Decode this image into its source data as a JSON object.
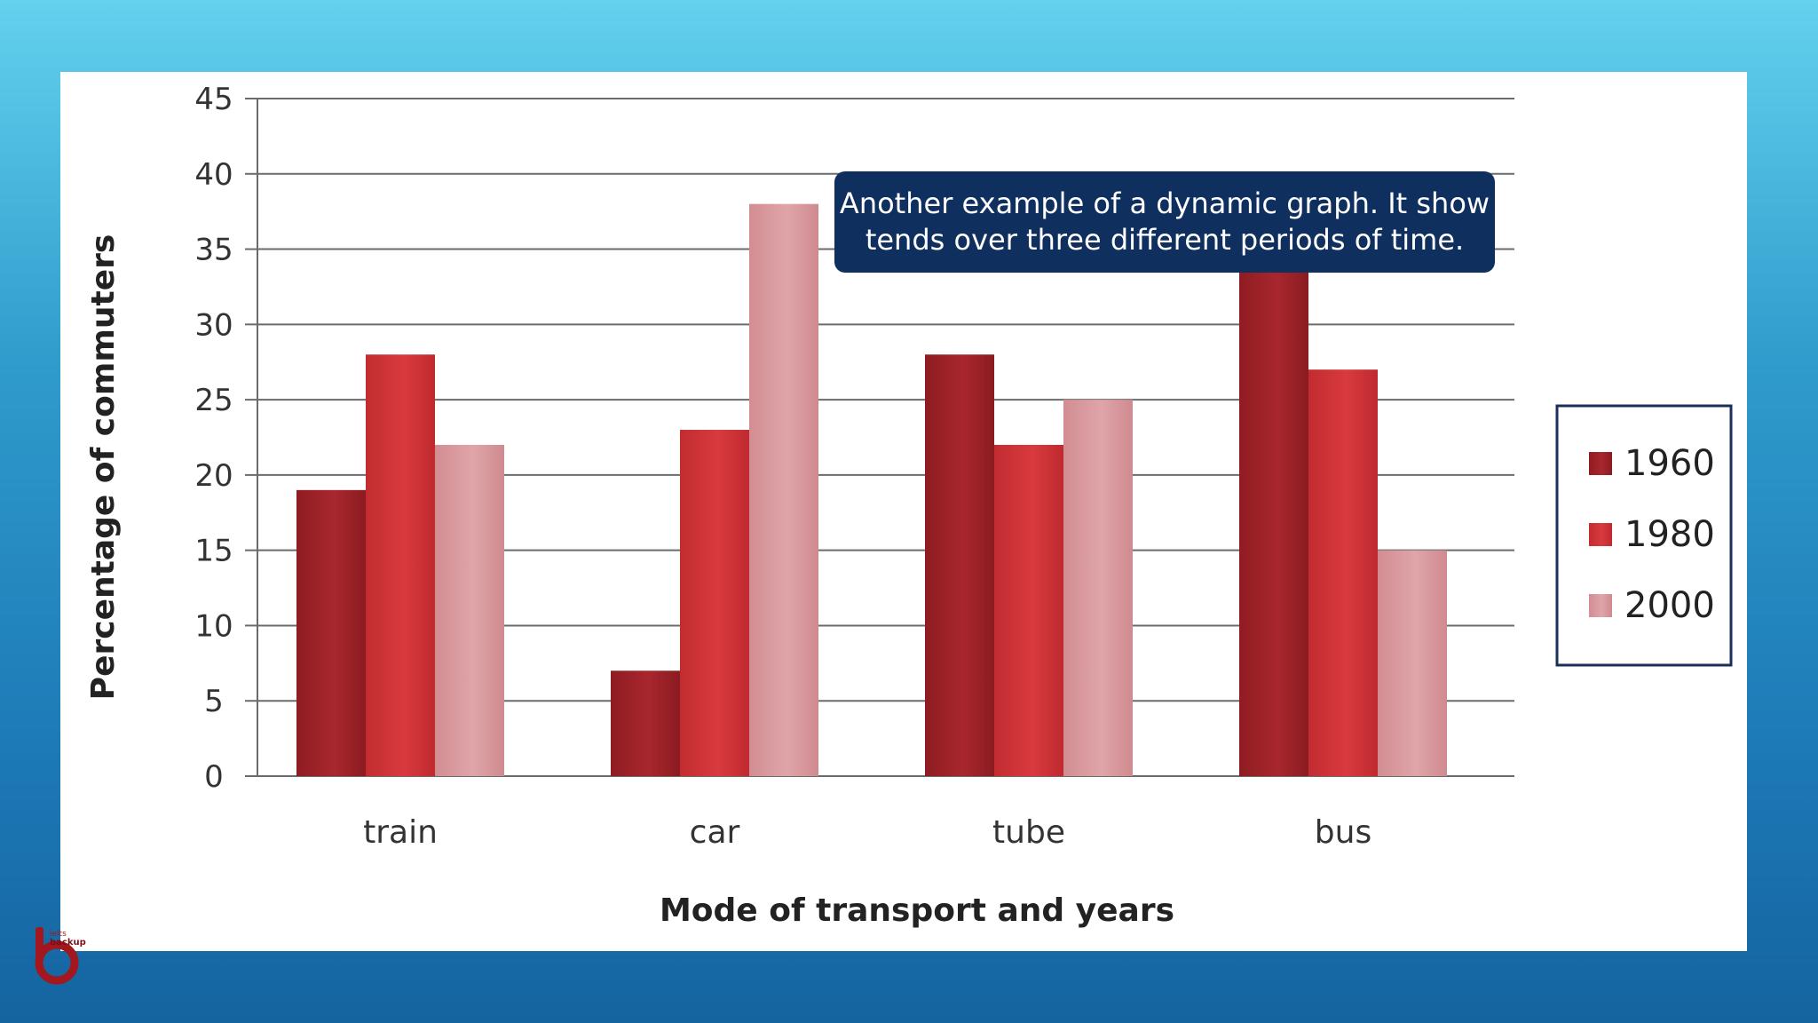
{
  "callout": {
    "line1": "Another example of a dynamic graph. It show",
    "line2": "tends over three different periods of time."
  },
  "logo": {
    "text1": "ielts",
    "text2": "backup",
    "icon": "ieltsbackup-logo-icon"
  },
  "colors": {
    "1960": "#982127",
    "1980": "#cc3236",
    "2000": "#d99a9e",
    "callout_bg": "#0f305f",
    "legend_border": "#1c2f5a"
  },
  "chart_data": {
    "type": "bar",
    "categories": [
      "train",
      "car",
      "tube",
      "bus"
    ],
    "series": [
      {
        "name": "1960",
        "values": [
          19,
          7,
          28,
          40
        ]
      },
      {
        "name": "1980",
        "values": [
          28,
          23,
          22,
          27
        ]
      },
      {
        "name": "2000",
        "values": [
          22,
          38,
          25,
          15
        ]
      }
    ],
    "xlabel": "Mode of transport and years",
    "ylabel": "Percentage of commuters",
    "ylim": [
      0,
      45
    ],
    "yticks": [
      0,
      5,
      10,
      15,
      20,
      25,
      30,
      35,
      40,
      45
    ],
    "grid": true,
    "legend": "right"
  }
}
